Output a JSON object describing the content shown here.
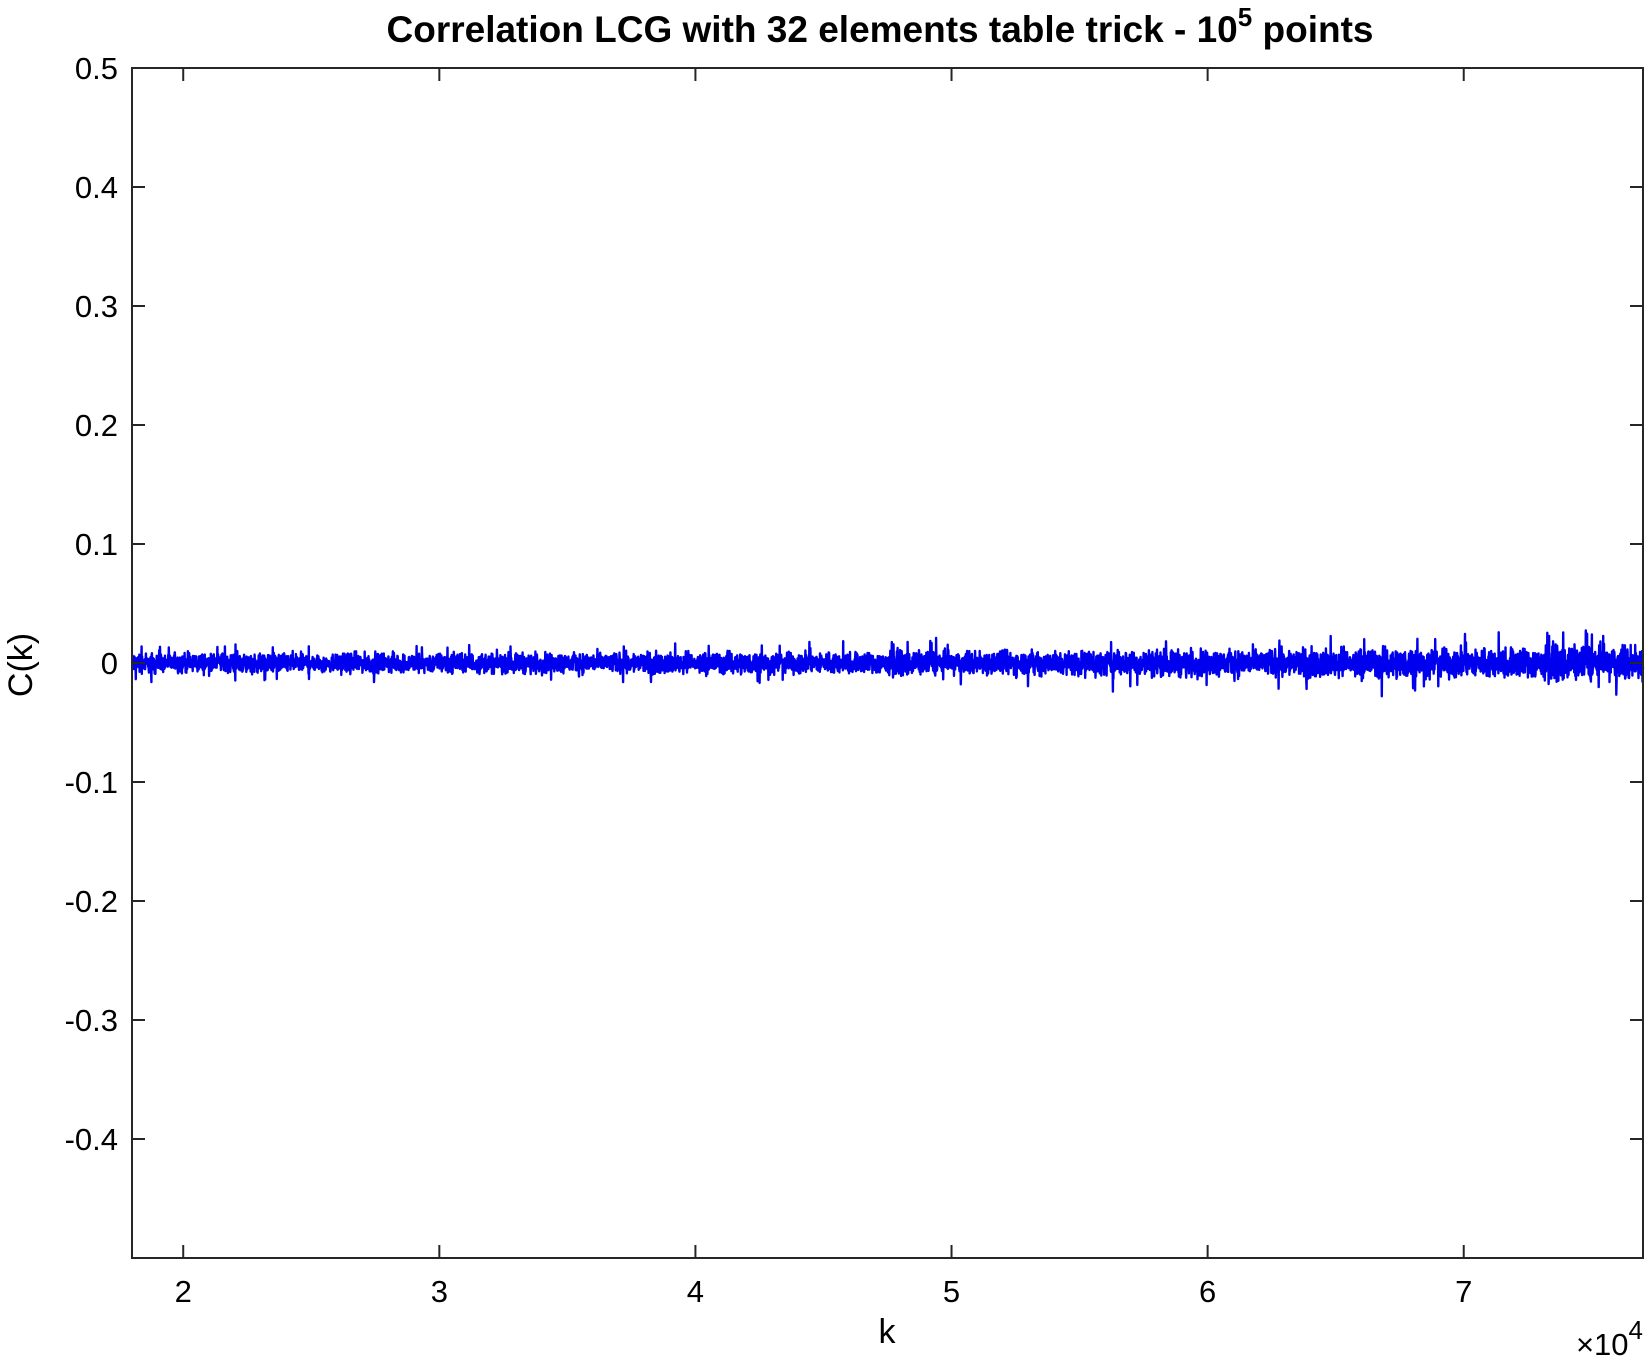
{
  "chart_data": {
    "type": "line",
    "title": {
      "main": "Correlation LCG with 32 elements table trick - 10",
      "superscript": "5",
      "suffix": " points"
    },
    "xlabel": "k",
    "ylabel": "C(k)",
    "x_exponent_label": "×10",
    "x_exponent_power": "4",
    "x_scale_factor": 10000,
    "xlim": [
      18000,
      77000
    ],
    "ylim": [
      -0.5,
      0.5
    ],
    "xticks": [
      20000,
      30000,
      40000,
      50000,
      60000,
      70000
    ],
    "xtick_labels": [
      "2",
      "3",
      "4",
      "5",
      "6",
      "7"
    ],
    "yticks": [
      -0.4,
      -0.3,
      -0.2,
      -0.1,
      0,
      0.1,
      0.2,
      0.3,
      0.4,
      0.5
    ],
    "ytick_labels": [
      "-0.4",
      "-0.3",
      "-0.2",
      "-0.1",
      "0",
      "0.1",
      "0.2",
      "0.3",
      "0.4",
      "0.5"
    ],
    "grid": false,
    "legend": "none",
    "series": [
      {
        "color": "#0000ee",
        "x_range": [
          18000,
          77000
        ],
        "center": 0,
        "amplitude_profile": {
          "x": [
            18000,
            30000,
            40000,
            50000,
            60000,
            70000,
            77000
          ],
          "max_abs_c": [
            0.014,
            0.014,
            0.015,
            0.017,
            0.019,
            0.022,
            0.026
          ]
        },
        "notable_points": [
          {
            "x": 49400,
            "y": 0.021
          },
          {
            "x": 56300,
            "y": -0.024
          },
          {
            "x": 66800,
            "y": -0.028
          },
          {
            "x": 75000,
            "y": 0.024
          }
        ]
      }
    ]
  }
}
